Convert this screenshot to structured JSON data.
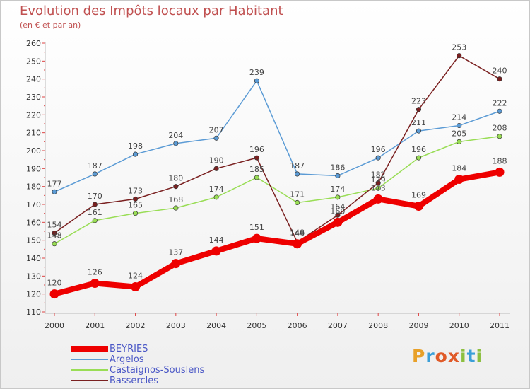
{
  "title": "Evolution des Impôts locaux par Habitant",
  "subtitle": "(en € et par an)",
  "logo_text": "Proxiti",
  "chart_data": {
    "type": "line",
    "title": "Evolution des Impôts locaux par Habitant",
    "subtitle": "(en € et par an)",
    "xlabel": "",
    "ylabel": "",
    "ylim": [
      110,
      260
    ],
    "ytick_step": 10,
    "grid": false,
    "legend": "bottom-left",
    "categories": [
      "2000",
      "2001",
      "2002",
      "2003",
      "2004",
      "2005",
      "2006",
      "2007",
      "2008",
      "2009",
      "2010",
      "2011"
    ],
    "series": [
      {
        "name": "BEYRIES",
        "color": "#ee0000",
        "values": [
          120,
          126,
          124,
          137,
          144,
          151,
          148,
          160,
          173,
          169,
          184,
          188
        ]
      },
      {
        "name": "Argelos",
        "color": "#5b9bd5",
        "values": [
          177,
          187,
          198,
          204,
          207,
          239,
          187,
          186,
          196,
          211,
          214,
          222
        ]
      },
      {
        "name": "Castaignos-Souslens",
        "color": "#99dd55",
        "values": [
          148,
          161,
          165,
          168,
          174,
          185,
          171,
          174,
          179,
          196,
          205,
          208
        ]
      },
      {
        "name": "Bassercles",
        "color": "#7a2020",
        "values": [
          154,
          170,
          173,
          180,
          190,
          196,
          149,
          164,
          182,
          223,
          253,
          240
        ]
      }
    ]
  }
}
